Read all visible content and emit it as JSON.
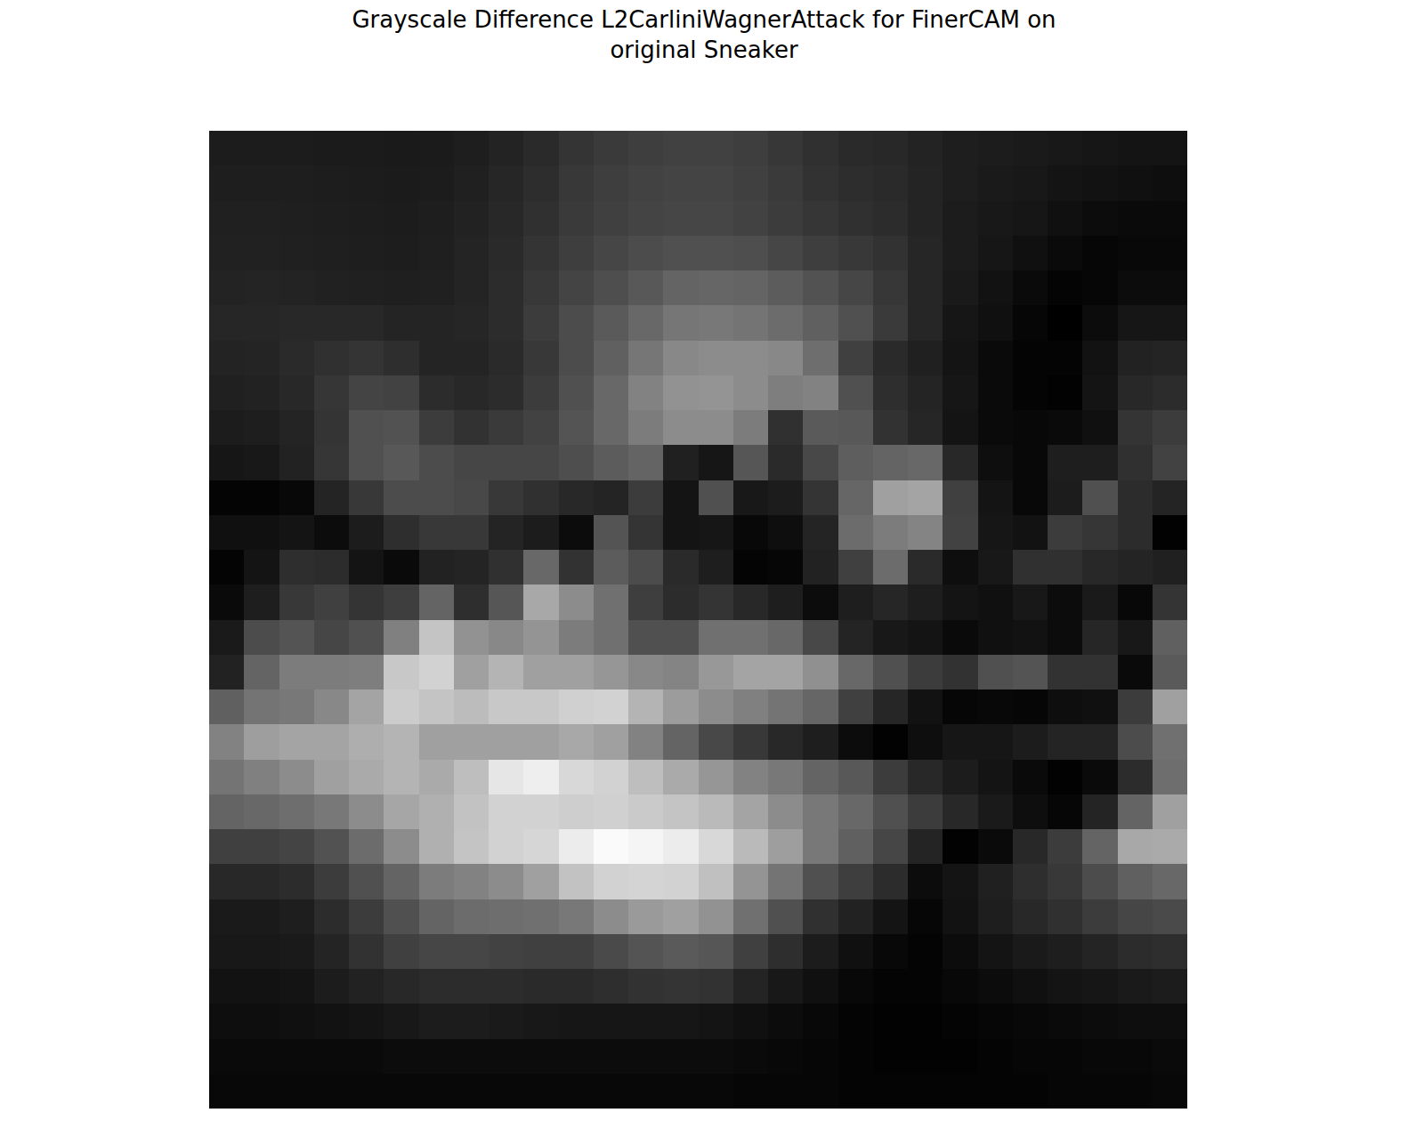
{
  "chart_data": {
    "type": "heatmap",
    "title": "Grayscale Difference L2CarliniWagnerAttack for FinerCAM on\noriginal Sneaker",
    "tick_labels": false,
    "color": "gray",
    "zlim": [
      0,
      255
    ],
    "cells": [
      [
        28,
        28,
        28,
        27,
        27,
        26,
        27,
        30,
        35,
        42,
        52,
        58,
        62,
        65,
        65,
        62,
        55,
        48,
        42,
        40,
        35,
        30,
        28,
        26,
        24,
        22,
        20,
        20
      ],
      [
        30,
        30,
        30,
        29,
        28,
        27,
        28,
        32,
        38,
        45,
        56,
        62,
        66,
        68,
        68,
        64,
        58,
        50,
        45,
        42,
        36,
        30,
        26,
        24,
        20,
        18,
        16,
        14
      ],
      [
        32,
        32,
        31,
        30,
        29,
        28,
        30,
        34,
        40,
        48,
        58,
        64,
        68,
        70,
        70,
        66,
        60,
        54,
        48,
        44,
        36,
        28,
        24,
        22,
        16,
        12,
        10,
        10
      ],
      [
        33,
        33,
        32,
        31,
        30,
        29,
        31,
        36,
        42,
        52,
        62,
        70,
        76,
        80,
        80,
        78,
        70,
        62,
        56,
        50,
        38,
        28,
        22,
        16,
        10,
        6,
        8,
        8
      ],
      [
        35,
        36,
        35,
        33,
        32,
        31,
        32,
        36,
        44,
        56,
        68,
        78,
        88,
        100,
        102,
        100,
        92,
        82,
        70,
        55,
        38,
        26,
        18,
        10,
        4,
        6,
        12,
        12
      ],
      [
        38,
        38,
        40,
        40,
        40,
        36,
        36,
        38,
        44,
        60,
        76,
        90,
        104,
        118,
        120,
        116,
        108,
        96,
        80,
        58,
        38,
        22,
        16,
        6,
        0,
        12,
        22,
        22
      ],
      [
        35,
        36,
        42,
        48,
        52,
        46,
        36,
        36,
        42,
        56,
        76,
        96,
        118,
        136,
        140,
        140,
        136,
        110,
        64,
        42,
        32,
        20,
        10,
        4,
        4,
        18,
        34,
        36
      ],
      [
        32,
        34,
        40,
        54,
        68,
        66,
        44,
        40,
        44,
        60,
        80,
        104,
        130,
        146,
        148,
        140,
        126,
        130,
        80,
        46,
        36,
        22,
        10,
        4,
        2,
        20,
        40,
        44
      ],
      [
        28,
        30,
        36,
        52,
        80,
        82,
        60,
        50,
        58,
        66,
        84,
        104,
        124,
        140,
        140,
        124,
        48,
        90,
        88,
        50,
        38,
        20,
        10,
        8,
        10,
        16,
        52,
        60
      ],
      [
        22,
        24,
        34,
        54,
        80,
        88,
        76,
        70,
        70,
        70,
        78,
        92,
        100,
        32,
        22,
        86,
        42,
        72,
        94,
        100,
        104,
        40,
        14,
        8,
        30,
        30,
        48,
        66
      ],
      [
        4,
        4,
        8,
        36,
        56,
        76,
        76,
        72,
        56,
        48,
        40,
        36,
        60,
        20,
        80,
        24,
        28,
        52,
        102,
        160,
        164,
        64,
        20,
        8,
        28,
        80,
        44,
        36
      ],
      [
        16,
        16,
        20,
        12,
        28,
        46,
        56,
        56,
        36,
        28,
        12,
        84,
        52,
        20,
        22,
        8,
        14,
        36,
        108,
        124,
        132,
        66,
        22,
        18,
        60,
        54,
        44,
        2
      ],
      [
        4,
        20,
        46,
        44,
        20,
        10,
        34,
        36,
        48,
        104,
        50,
        92,
        76,
        42,
        30,
        4,
        6,
        34,
        64,
        108,
        42,
        14,
        24,
        48,
        48,
        40,
        36,
        32
      ],
      [
        10,
        30,
        56,
        64,
        52,
        62,
        100,
        46,
        86,
        168,
        140,
        112,
        62,
        44,
        52,
        40,
        30,
        12,
        30,
        38,
        30,
        20,
        16,
        24,
        12,
        26,
        8,
        52
      ],
      [
        26,
        76,
        84,
        70,
        80,
        128,
        196,
        146,
        136,
        148,
        124,
        112,
        80,
        80,
        112,
        112,
        104,
        72,
        36,
        24,
        20,
        10,
        16,
        18,
        12,
        38,
        24,
        96
      ],
      [
        34,
        100,
        124,
        124,
        126,
        200,
        210,
        160,
        180,
        160,
        160,
        150,
        136,
        132,
        152,
        164,
        164,
        144,
        104,
        80,
        60,
        50,
        80,
        84,
        50,
        50,
        10,
        90
      ],
      [
        96,
        116,
        120,
        136,
        164,
        204,
        196,
        188,
        200,
        200,
        208,
        210,
        180,
        156,
        140,
        128,
        116,
        102,
        64,
        38,
        18,
        6,
        8,
        6,
        14,
        16,
        60,
        160
      ],
      [
        130,
        158,
        164,
        164,
        174,
        180,
        160,
        160,
        160,
        160,
        168,
        160,
        130,
        100,
        72,
        56,
        40,
        30,
        12,
        2,
        14,
        22,
        22,
        28,
        36,
        36,
        76,
        112
      ],
      [
        116,
        128,
        140,
        160,
        170,
        180,
        170,
        190,
        230,
        238,
        216,
        210,
        190,
        170,
        150,
        130,
        120,
        100,
        88,
        60,
        40,
        28,
        20,
        10,
        2,
        10,
        44,
        110
      ],
      [
        100,
        104,
        110,
        120,
        140,
        166,
        176,
        194,
        210,
        210,
        206,
        208,
        202,
        196,
        186,
        164,
        140,
        120,
        104,
        80,
        60,
        40,
        26,
        14,
        6,
        36,
        100,
        160
      ],
      [
        64,
        64,
        68,
        82,
        108,
        140,
        176,
        196,
        210,
        214,
        236,
        250,
        245,
        236,
        216,
        186,
        158,
        120,
        96,
        70,
        36,
        2,
        10,
        40,
        60,
        100,
        168,
        170
      ],
      [
        40,
        40,
        44,
        60,
        80,
        100,
        124,
        130,
        140,
        160,
        194,
        210,
        212,
        210,
        192,
        148,
        116,
        80,
        62,
        44,
        12,
        20,
        32,
        46,
        56,
        76,
        96,
        104
      ],
      [
        26,
        26,
        30,
        44,
        60,
        80,
        100,
        108,
        110,
        112,
        120,
        140,
        154,
        160,
        146,
        112,
        80,
        48,
        34,
        20,
        6,
        18,
        30,
        40,
        48,
        60,
        70,
        74
      ],
      [
        24,
        24,
        26,
        36,
        50,
        64,
        70,
        70,
        66,
        64,
        64,
        74,
        84,
        90,
        86,
        64,
        46,
        28,
        16,
        8,
        4,
        12,
        20,
        26,
        30,
        36,
        44,
        46
      ],
      [
        18,
        18,
        20,
        28,
        34,
        40,
        44,
        44,
        44,
        42,
        42,
        46,
        50,
        52,
        50,
        36,
        24,
        16,
        8,
        4,
        4,
        8,
        12,
        16,
        20,
        22,
        26,
        28
      ],
      [
        14,
        14,
        16,
        18,
        20,
        24,
        28,
        28,
        26,
        24,
        22,
        22,
        22,
        22,
        20,
        16,
        12,
        8,
        4,
        2,
        2,
        4,
        6,
        8,
        10,
        12,
        14,
        14
      ],
      [
        10,
        10,
        10,
        10,
        10,
        12,
        12,
        12,
        12,
        12,
        12,
        12,
        12,
        12,
        12,
        10,
        8,
        6,
        4,
        2,
        2,
        2,
        4,
        6,
        6,
        8,
        8,
        10
      ],
      [
        8,
        8,
        8,
        8,
        8,
        8,
        8,
        8,
        8,
        8,
        8,
        8,
        8,
        8,
        8,
        6,
        6,
        6,
        4,
        4,
        4,
        4,
        4,
        4,
        6,
        6,
        6,
        8
      ]
    ]
  }
}
